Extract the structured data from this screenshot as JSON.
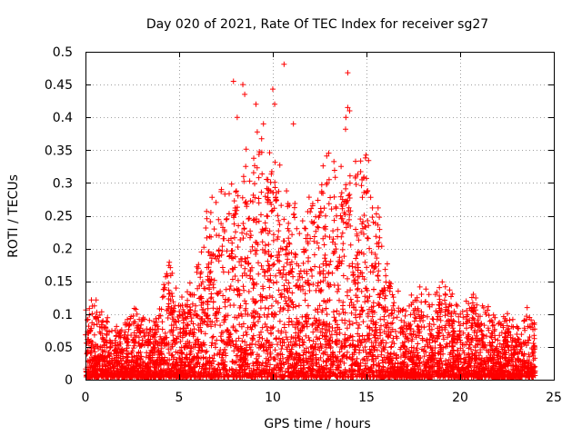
{
  "chart_data": {
    "type": "scatter",
    "title": "Day 020 of 2021, Rate Of TEC Index for receiver sg27",
    "xlabel": "GPS time / hours",
    "ylabel": "ROTI / TECUs",
    "xlim": [
      0,
      25
    ],
    "ylim": [
      0,
      0.5
    ],
    "x_ticks": [
      0,
      5,
      10,
      15,
      20,
      25
    ],
    "y_ticks": [
      0,
      0.05,
      0.1,
      0.15,
      0.2,
      0.25,
      0.3,
      0.35,
      0.4,
      0.45,
      0.5
    ],
    "x_tick_labels": [
      "0",
      "5",
      "10",
      "15",
      "20",
      "25"
    ],
    "y_tick_labels": [
      "0",
      "0.05",
      "0.1",
      "0.15",
      "0.2",
      "0.25",
      "0.3",
      "0.35",
      "0.4",
      "0.45",
      "0.5"
    ],
    "grid": true,
    "legend": "none",
    "marker": "+",
    "color": "#ff0000",
    "envelope": {
      "x": [
        0,
        0.5,
        1,
        1.5,
        2,
        2.5,
        3,
        3.5,
        4,
        4.5,
        5,
        5.5,
        6,
        6.5,
        7,
        7.5,
        8,
        8.5,
        9,
        9.5,
        10,
        10.5,
        11,
        11.5,
        12,
        12.5,
        13,
        13.5,
        14,
        14.5,
        15,
        15.5,
        16,
        16.5,
        17,
        17.5,
        18,
        18.5,
        19,
        19.5,
        20,
        20.5,
        21,
        21.5,
        22,
        22.5,
        23,
        23.5,
        24
      ],
      "y": [
        0.1,
        0.11,
        0.09,
        0.07,
        0.08,
        0.1,
        0.09,
        0.08,
        0.12,
        0.18,
        0.12,
        0.13,
        0.16,
        0.24,
        0.3,
        0.26,
        0.33,
        0.35,
        0.34,
        0.35,
        0.32,
        0.31,
        0.27,
        0.24,
        0.26,
        0.29,
        0.32,
        0.3,
        0.34,
        0.31,
        0.33,
        0.27,
        0.16,
        0.13,
        0.12,
        0.11,
        0.14,
        0.12,
        0.14,
        0.12,
        0.1,
        0.12,
        0.11,
        0.1,
        0.08,
        0.09,
        0.08,
        0.1,
        0.09
      ]
    },
    "outliers": [
      {
        "x": 7.9,
        "y": 0.455
      },
      {
        "x": 8.1,
        "y": 0.4
      },
      {
        "x": 8.4,
        "y": 0.45
      },
      {
        "x": 8.5,
        "y": 0.435
      },
      {
        "x": 9.1,
        "y": 0.42
      },
      {
        "x": 9.5,
        "y": 0.39
      },
      {
        "x": 10.0,
        "y": 0.443
      },
      {
        "x": 10.1,
        "y": 0.42
      },
      {
        "x": 10.6,
        "y": 0.481
      },
      {
        "x": 11.1,
        "y": 0.39
      },
      {
        "x": 14.0,
        "y": 0.468
      },
      {
        "x": 14.0,
        "y": 0.415
      },
      {
        "x": 14.1,
        "y": 0.41
      },
      {
        "x": 13.9,
        "y": 0.4
      }
    ]
  }
}
